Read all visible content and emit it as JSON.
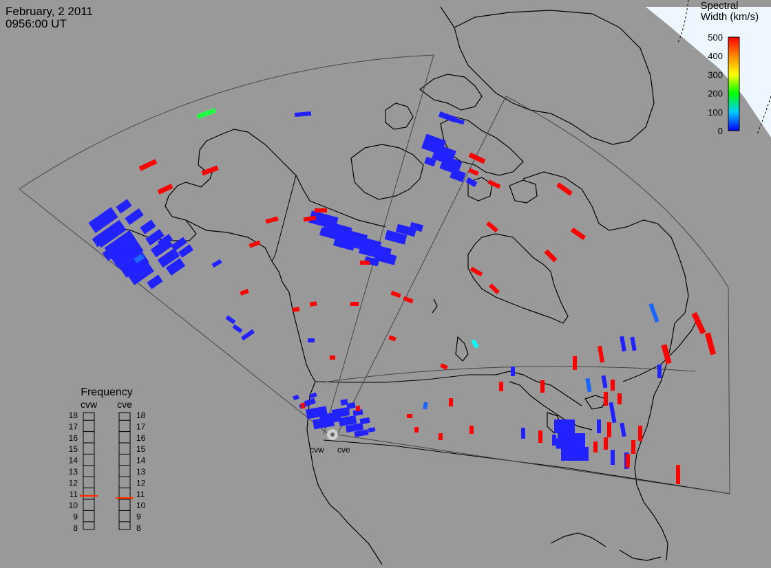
{
  "header": {
    "date": "February, 2 2011",
    "time": "0956:00 UT"
  },
  "colorbar": {
    "title_line1": "Spectral",
    "title_line2": "Width (km/s)",
    "ticks": [
      "500",
      "400",
      "300",
      "200",
      "100",
      "0"
    ],
    "min": 0,
    "max": 500
  },
  "frequency_panel": {
    "title": "Frequency",
    "left_label": "cvw",
    "right_label": "cve",
    "ticks": [
      "18",
      "17",
      "16",
      "15",
      "14",
      "13",
      "12",
      "11",
      "10",
      "9",
      "8"
    ],
    "cvw_value": 10.8,
    "cve_value": 10.6
  },
  "radar_sites": {
    "west": "cvw",
    "east": "cve"
  },
  "colors": {
    "background": "#999999",
    "low": "#2020ff",
    "mid_low": "#1a66ff",
    "cyan": "#00ffff",
    "green": "#00ff44",
    "high": "#ff0000",
    "marker": "#ff4400"
  }
}
